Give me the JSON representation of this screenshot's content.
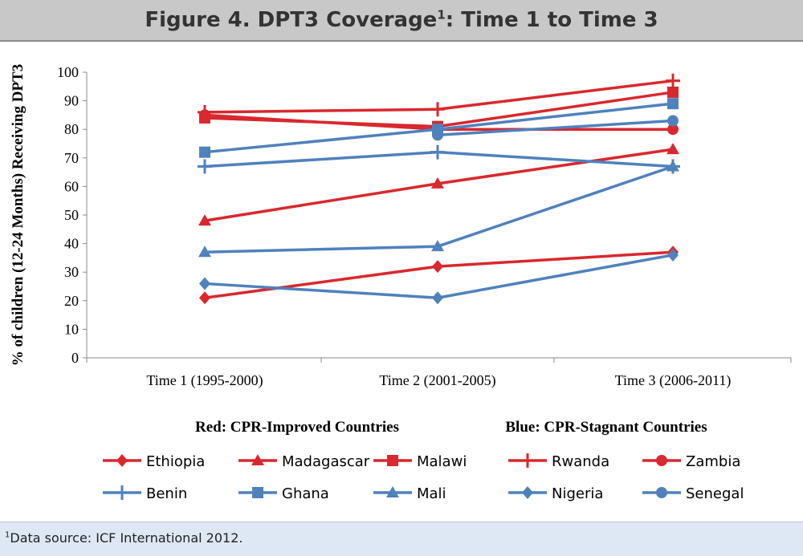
{
  "header": {
    "title_main": "Figure 4. DPT3 Coverage",
    "title_sup": "1",
    "title_rest": ": Time 1 to Time 3"
  },
  "footnote": {
    "sup": "1",
    "text": "Data source: ICF International 2012."
  },
  "colors": {
    "red": "#d9282e",
    "red_dark": "#c0504d",
    "blue": "#4f81bd",
    "axis": "#888888"
  },
  "chart_data": {
    "type": "line",
    "ylabel": "% of children (12-24 Months) Receiving DPT3",
    "xlabel": "",
    "ylim": [
      0,
      100
    ],
    "yticks": [
      0,
      10,
      20,
      30,
      40,
      50,
      60,
      70,
      80,
      90,
      100
    ],
    "categories": [
      "Time 1 (1995-2000)",
      "Time 2 (2001-2005)",
      "Time 3 (2006-2011)"
    ],
    "grid": false,
    "legend_titles": {
      "red": "Red: CPR-Improved Countries",
      "blue": "Blue: CPR-Stagnant Countries"
    },
    "legend_placement": "bottom",
    "series": [
      {
        "name": "Ethiopia",
        "group": "red",
        "marker": "diamond",
        "values": [
          21,
          32,
          37
        ]
      },
      {
        "name": "Madagascar",
        "group": "red",
        "marker": "triangle",
        "values": [
          48,
          61,
          73
        ]
      },
      {
        "name": "Malawi",
        "group": "red",
        "marker": "square",
        "values": [
          84,
          81,
          93
        ]
      },
      {
        "name": "Rwanda",
        "group": "red",
        "marker": "plus",
        "values": [
          86,
          87,
          97
        ]
      },
      {
        "name": "Zambia",
        "group": "red",
        "marker": "circle",
        "values": [
          85,
          80,
          80
        ]
      },
      {
        "name": "Benin",
        "group": "blue",
        "marker": "plus",
        "values": [
          67,
          72,
          67
        ]
      },
      {
        "name": "Ghana",
        "group": "blue",
        "marker": "square",
        "values": [
          72,
          80,
          89
        ]
      },
      {
        "name": "Mali",
        "group": "blue",
        "marker": "triangle",
        "values": [
          37,
          39,
          67
        ]
      },
      {
        "name": "Nigeria",
        "group": "blue",
        "marker": "diamond",
        "values": [
          26,
          21,
          36
        ]
      },
      {
        "name": "Senegal",
        "group": "blue",
        "marker": "circle",
        "values": [
          null,
          78,
          83
        ]
      }
    ]
  }
}
